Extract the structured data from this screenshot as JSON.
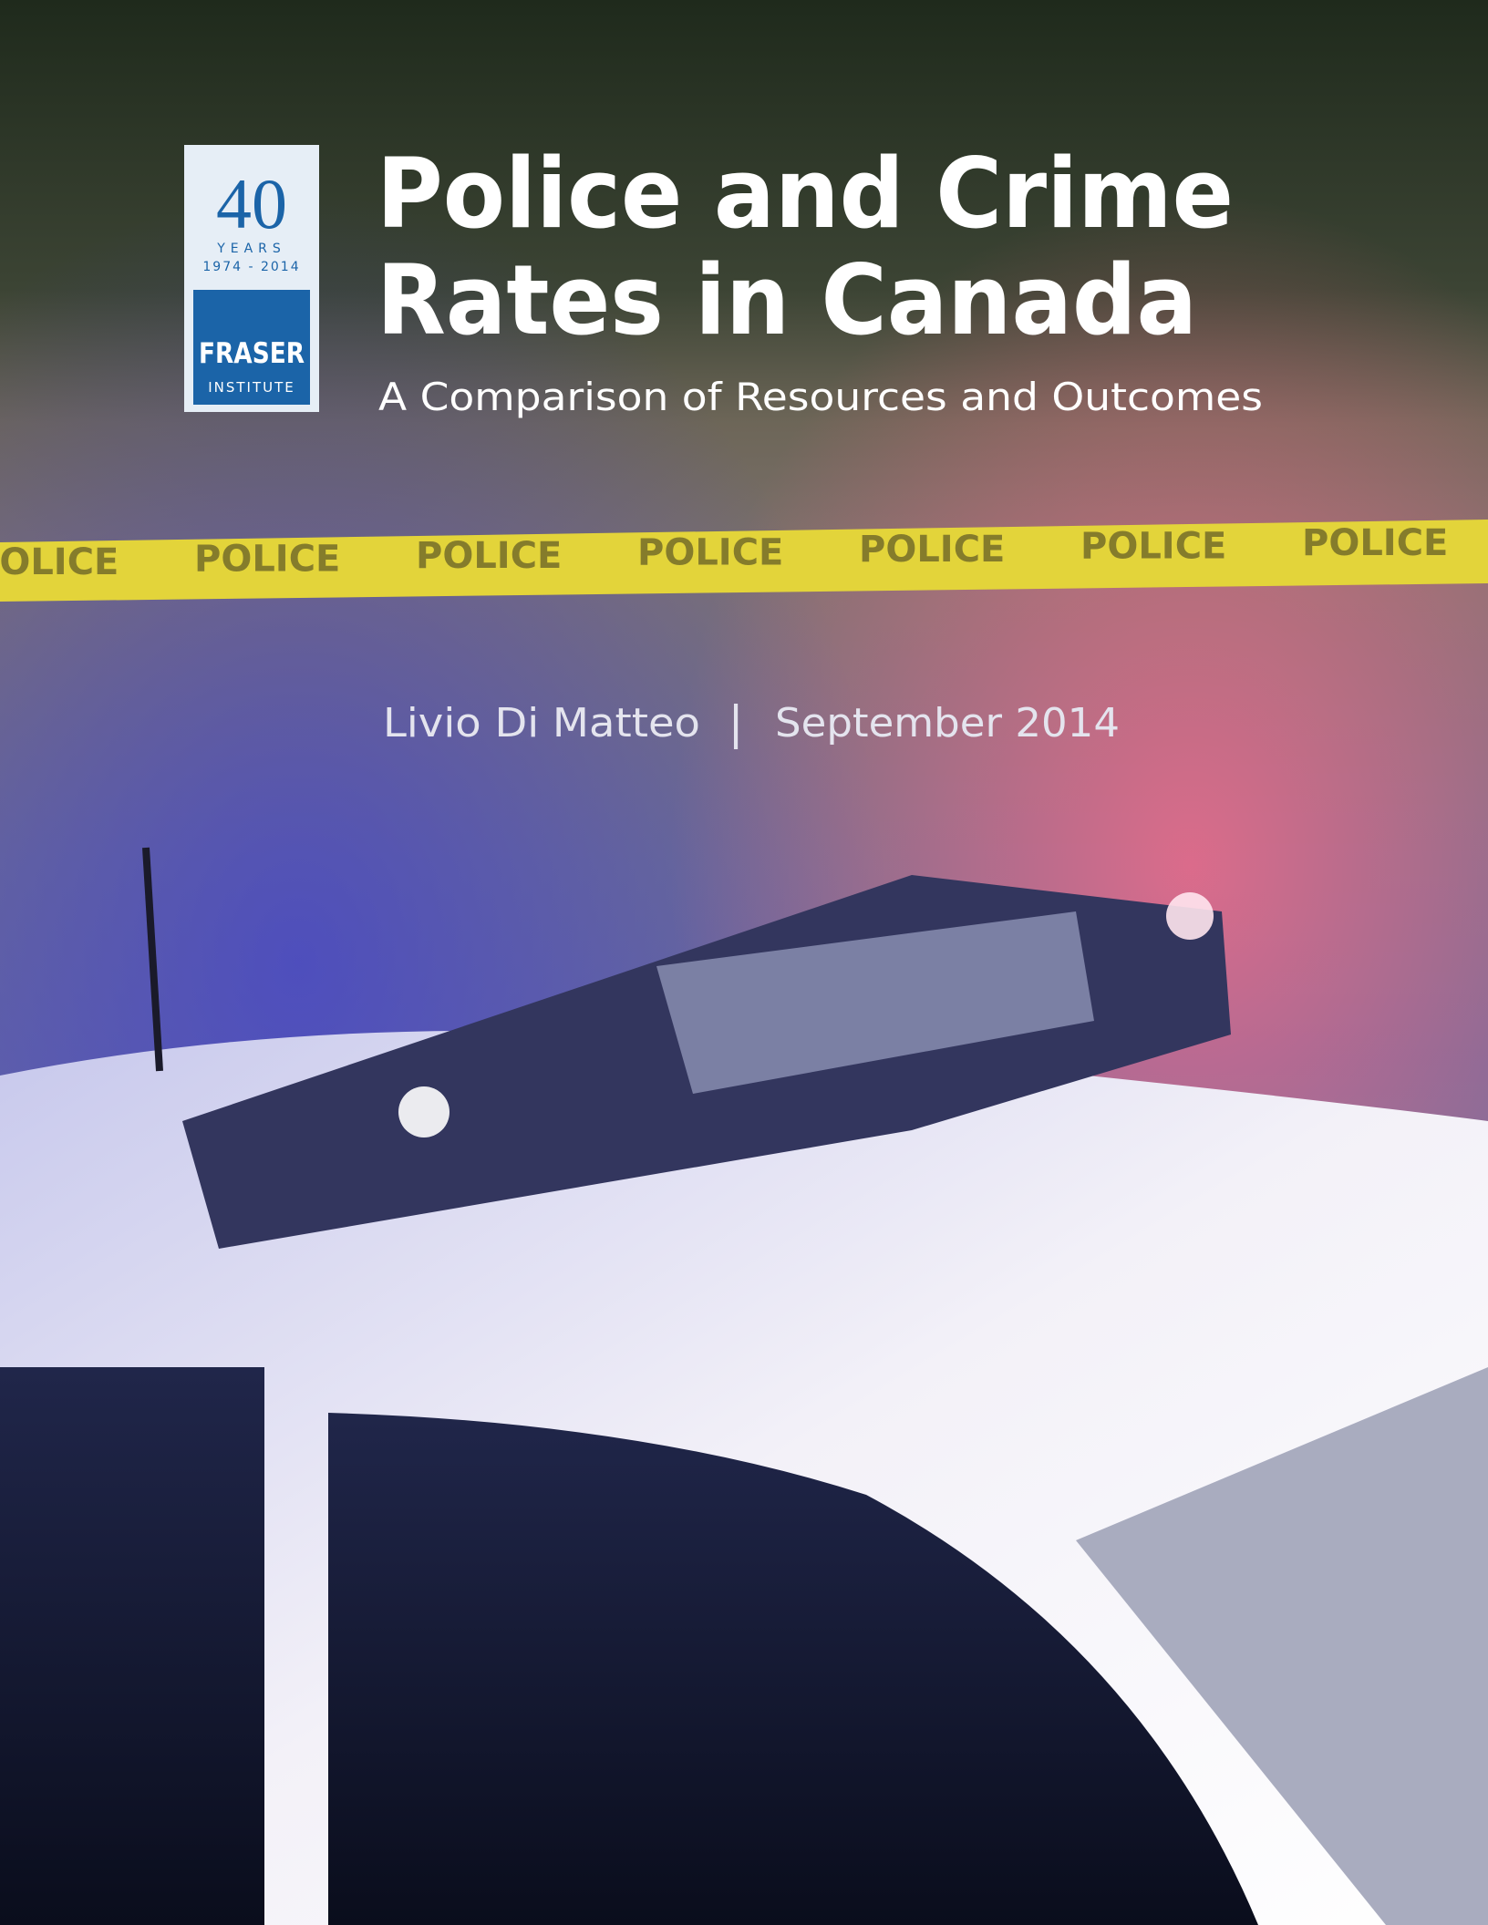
{
  "logo": {
    "number": "40",
    "years": "YEARS",
    "span": "1974 - 2014",
    "name": "FRASER",
    "institute": "INSTITUTE"
  },
  "title": {
    "line1": "Police and Crime",
    "line2": "Rates in Canada"
  },
  "subtitle": "A Comparison of Resources and Outcomes",
  "tape_text": "POLICE",
  "byline": {
    "author": "Livio Di Matteo",
    "separator": "|",
    "date": "September 2014"
  }
}
